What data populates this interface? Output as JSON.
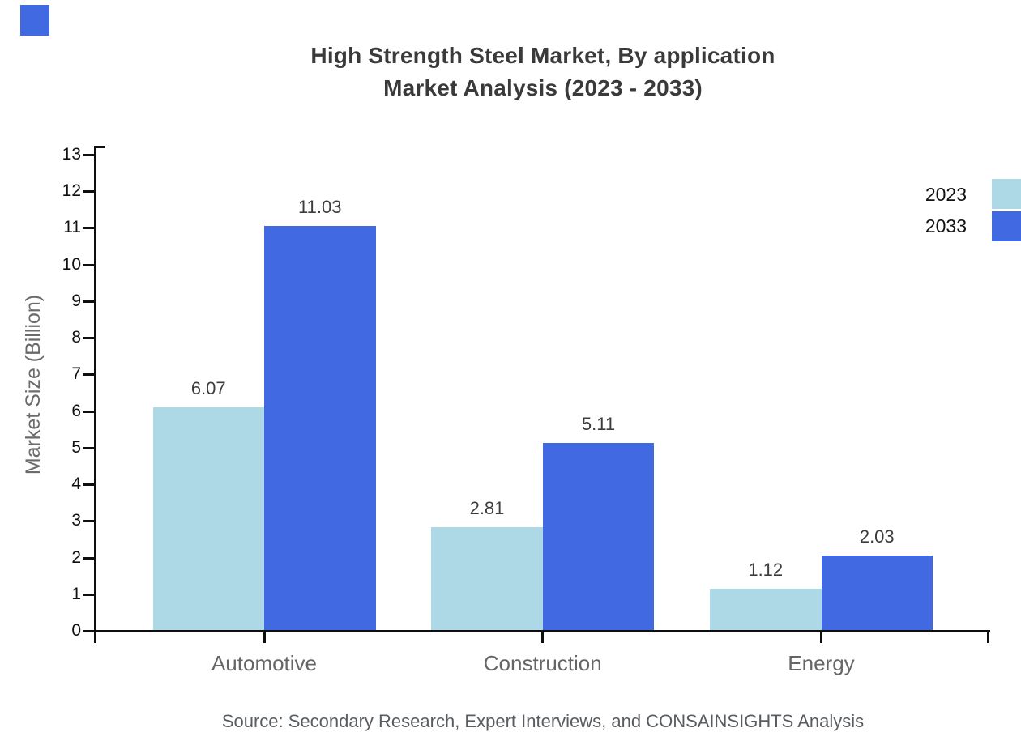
{
  "page": {
    "background": "#ffffff"
  },
  "logo": {
    "color": "#4169E1"
  },
  "title": {
    "line1": "High Strength Steel Market, By application",
    "line2": "Market Analysis (2023 - 2033)"
  },
  "source": {
    "text": "Source: Secondary Research, Expert Interviews, and CONSAINSIGHTS Analysis"
  },
  "chart_data": {
    "type": "bar",
    "categories": [
      "Automotive",
      "Construction",
      "Energy"
    ],
    "series": [
      {
        "name": "2023",
        "color": "#ADD8E6",
        "values": [
          6.07,
          2.81,
          1.12
        ]
      },
      {
        "name": "2033",
        "color": "#4169E1",
        "values": [
          11.03,
          5.11,
          2.03
        ]
      }
    ],
    "bar_value_labels": [
      "6.07",
      "2.81",
      "1.12",
      "11.03",
      "5.11",
      "2.03"
    ],
    "ylabel": "Market Size (Billion)",
    "ylim": [
      0,
      13
    ],
    "yticks": [
      0,
      1,
      2,
      3,
      4,
      5,
      6,
      7,
      8,
      9,
      10,
      11,
      12,
      13
    ],
    "grid": false,
    "legend_position": "top-right",
    "axis_color": "#0f0f0f",
    "label_color": "#3d3d3d",
    "category_label_color": "#666666"
  }
}
